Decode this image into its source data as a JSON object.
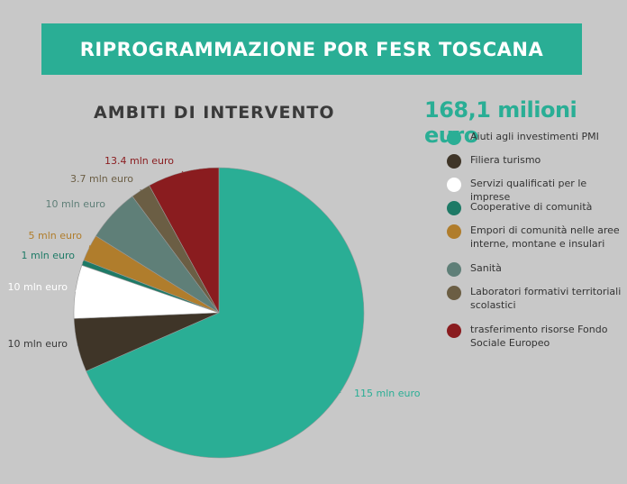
{
  "header": {
    "title": "RIPROGRAMMAZIONE POR FESR TOSCANA",
    "subtitle": "AMBITI DI INTERVENTO",
    "total": "168,1 milioni euro"
  },
  "colors": {
    "banner": "#2aae95",
    "background": "#c8c8c8"
  },
  "chart_data": {
    "type": "pie",
    "title": "AMBITI DI INTERVENTO",
    "unit": "mln euro",
    "slices": [
      {
        "name": "Aiuti agli investimenti PMI",
        "value": 115,
        "label": "115 mln euro",
        "color": "#2aae95",
        "label_color": "#2aae95"
      },
      {
        "name": "Filiera turismo",
        "value": 10,
        "label": "10 mln euro",
        "color": "#3f3528",
        "label_color": "#3a3a3a"
      },
      {
        "name": "Servizi qualificati per le imprese",
        "value": 10,
        "label": "10 mln euro",
        "color": "#ffffff",
        "label_color": "#ffffff"
      },
      {
        "name": "Cooperative di comunità",
        "value": 1,
        "label": "1 mln euro",
        "color": "#1e7a66",
        "label_color": "#1e7a66"
      },
      {
        "name": "Empori di comunità nelle aree interne, montane e insulari",
        "value": 5,
        "label": "5 mln euro",
        "color": "#b07d2c",
        "label_color": "#b07d2c"
      },
      {
        "name": "Sanità",
        "value": 10,
        "label": "10 mln euro",
        "color": "#5f7f78",
        "label_color": "#5f7f78"
      },
      {
        "name": "Laboratori formativi territoriali scolastici",
        "value": 3.7,
        "label": "3.7 mln euro",
        "color": "#6b5e44",
        "label_color": "#6b5e44"
      },
      {
        "name": "trasferimento risorse Fondo Sociale Europeo",
        "value": 13.4,
        "label": "13.4 mln euro",
        "color": "#8a1c1f",
        "label_color": "#8a1c1f"
      }
    ]
  }
}
